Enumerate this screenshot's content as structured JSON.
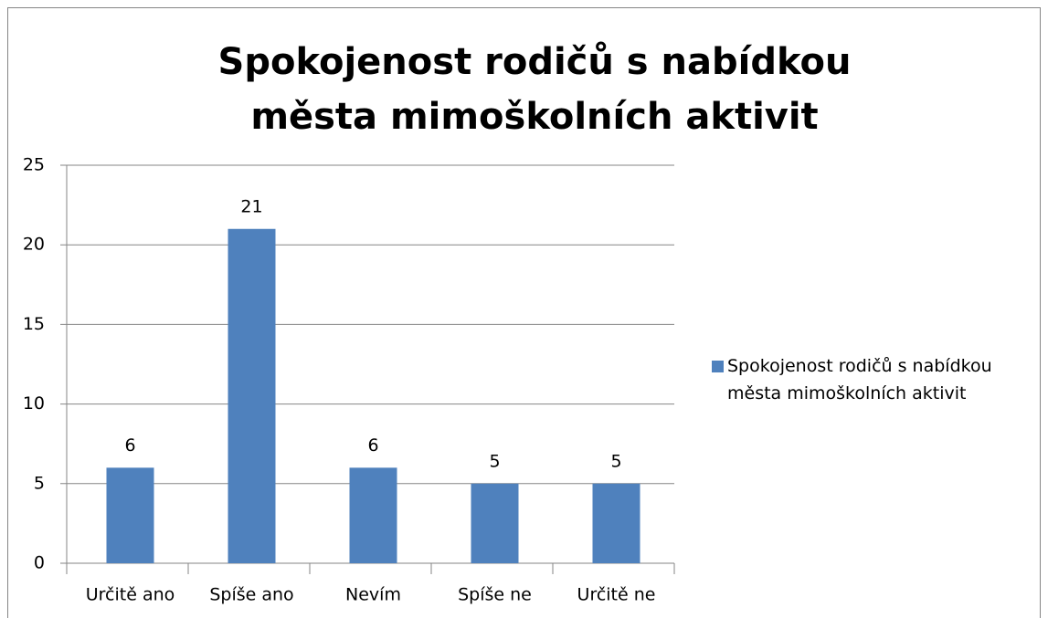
{
  "chart_data": {
    "type": "bar",
    "title": "Spokojenost rodičů s nabídkou města mimoškolních aktivit",
    "categories": [
      "Určitě ano",
      "Spíše ano",
      "Nevím",
      "Spíše ne",
      "Určitě ne"
    ],
    "series": [
      {
        "name": "Spokojenost rodičů s nabídkou města mimoškolních aktivit",
        "color": "#4f81bd",
        "values": [
          6,
          21,
          6,
          5,
          5
        ]
      }
    ],
    "ylim": [
      0,
      25
    ],
    "yticks": [
      0,
      5,
      10,
      15,
      20,
      25
    ],
    "grid": true,
    "legend": "right"
  }
}
